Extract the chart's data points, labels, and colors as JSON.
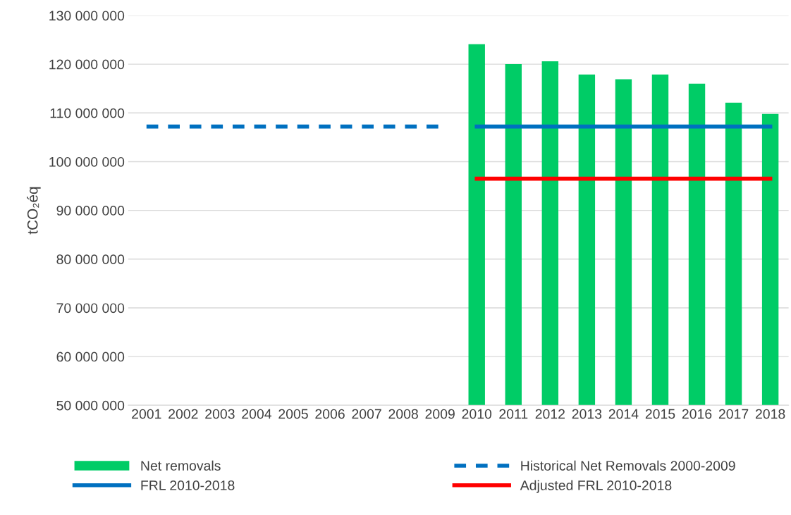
{
  "chart_data": {
    "type": "bar",
    "ylabel": "tCO₂éq",
    "categories": [
      "2001",
      "2002",
      "2003",
      "2004",
      "2005",
      "2006",
      "2007",
      "2008",
      "2009",
      "2010",
      "2011",
      "2012",
      "2013",
      "2014",
      "2015",
      "2016",
      "2017",
      "2018"
    ],
    "series": [
      {
        "name": "Net removals",
        "color": "#00cc66",
        "values": [
          null,
          null,
          null,
          null,
          null,
          null,
          null,
          null,
          null,
          124100000,
          120000000,
          120600000,
          117900000,
          116900000,
          117900000,
          116000000,
          112100000,
          109800000
        ]
      },
      {
        "name": "Historical Net Removals 2000-2009",
        "type": "line",
        "line_style": "dashed",
        "color": "#0070c0",
        "values": [
          107200000,
          107200000,
          107200000,
          107200000,
          107200000,
          107200000,
          107200000,
          107200000,
          107200000,
          null,
          null,
          null,
          null,
          null,
          null,
          null,
          null,
          null
        ]
      },
      {
        "name": "FRL 2010-2018",
        "type": "line",
        "line_style": "solid",
        "color": "#0070c0",
        "values": [
          null,
          null,
          null,
          null,
          null,
          null,
          null,
          null,
          null,
          107200000,
          107200000,
          107200000,
          107200000,
          107200000,
          107200000,
          107200000,
          107200000,
          107200000
        ]
      },
      {
        "name": "Adjusted FRL 2010-2018",
        "type": "line",
        "line_style": "solid",
        "color": "#ff0000",
        "values": [
          null,
          null,
          null,
          null,
          null,
          null,
          null,
          null,
          null,
          96500000,
          96500000,
          96500000,
          96500000,
          96500000,
          96500000,
          96500000,
          96500000,
          96500000
        ]
      }
    ],
    "ylim": [
      50000000,
      130000000
    ],
    "yticks": [
      {
        "value": 50000000,
        "label": "50 000 000"
      },
      {
        "value": 60000000,
        "label": "60 000 000"
      },
      {
        "value": 70000000,
        "label": "70 000 000"
      },
      {
        "value": 80000000,
        "label": "80 000 000"
      },
      {
        "value": 90000000,
        "label": "90 000 000"
      },
      {
        "value": 100000000,
        "label": "100 000 000"
      },
      {
        "value": 110000000,
        "label": "110 000 000"
      },
      {
        "value": 120000000,
        "label": "120 000 000"
      },
      {
        "value": 130000000,
        "label": "130 000 000"
      }
    ],
    "grid": "y",
    "legend": "bottom"
  }
}
